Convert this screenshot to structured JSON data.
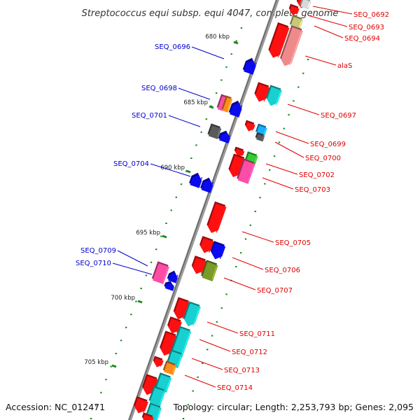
{
  "title": "Streptococcus equi subsp. equi 4047, complete genome",
  "footer": {
    "accession": "Accession: NC_012471",
    "topology": "Topology: circular; Length: 2,253,793 bp; Genes: 2,095"
  },
  "colors": {
    "forward_label": "#e00000",
    "reverse_label": "#0000cc",
    "backbone": "#8a8a8a",
    "tick": "#1a8a1a",
    "forward_gene": "#ff0000",
    "reverse_gene": "#0000ee"
  },
  "ticks": [
    "680 kbp",
    "685 kbp",
    "690 kbp",
    "695 kbp",
    "700 kbp",
    "705 kbp"
  ],
  "gene_labels": {
    "forward": [
      "SEQ_0692",
      "SEQ_0693",
      "SEQ_0694",
      "alaS",
      "SEQ_0697",
      "SEQ_0699",
      "SEQ_0700",
      "SEQ_0702",
      "SEQ_0703",
      "SEQ_0705",
      "SEQ_0706",
      "SEQ_0707",
      "SEQ_0711",
      "SEQ_0712",
      "SEQ_0713",
      "SEQ_0714"
    ],
    "reverse": [
      "SEQ_0696",
      "SEQ_0698",
      "SEQ_0701",
      "SEQ_0704",
      "SEQ_0709",
      "SEQ_0710"
    ]
  }
}
